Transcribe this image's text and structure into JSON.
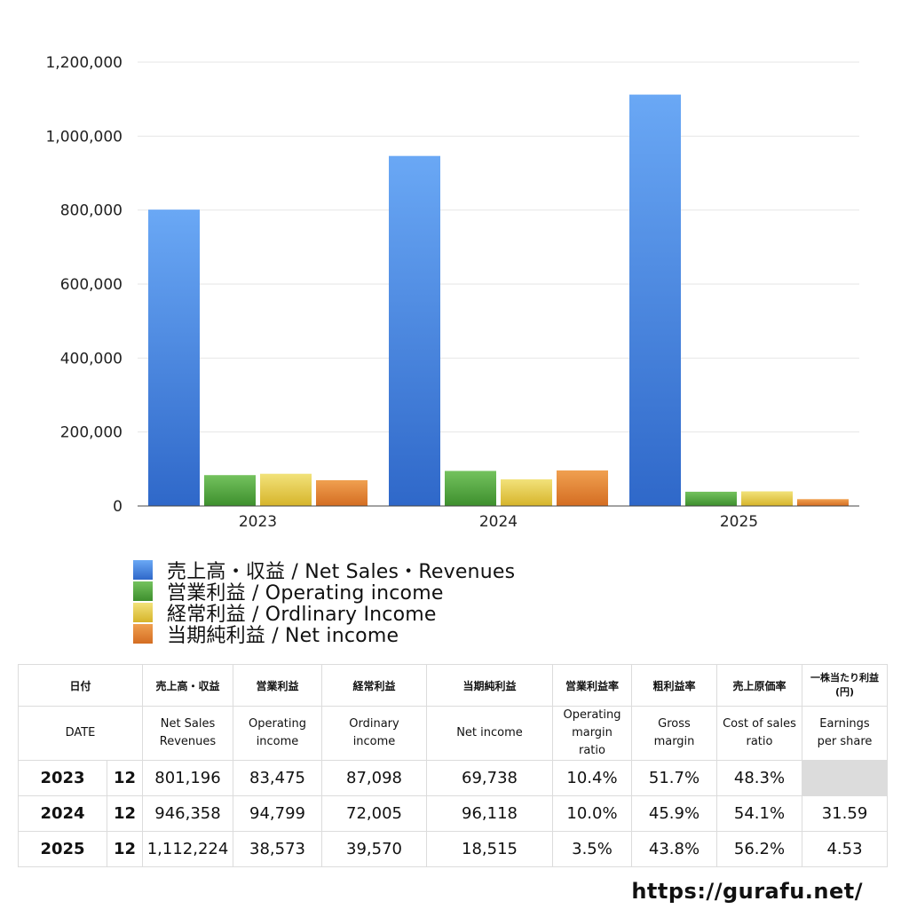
{
  "chart_data": {
    "type": "bar",
    "categories": [
      "2023",
      "2024",
      "2025"
    ],
    "series": [
      {
        "name": "売上高・収益 / Net Sales・Revenues",
        "values": [
          801196,
          946358,
          1112224
        ],
        "color_top": "#6aa8f5",
        "color_bottom": "#2f68c9"
      },
      {
        "name": "営業利益 / Operating income",
        "values": [
          83475,
          94799,
          38573
        ],
        "color_top": "#74c25e",
        "color_bottom": "#3d8f2d"
      },
      {
        "name": "経常利益 / Ordlinary Income",
        "values": [
          87098,
          72005,
          39570
        ],
        "color_top": "#f2e27a",
        "color_bottom": "#d6b42a"
      },
      {
        "name": "当期純利益 / Net income",
        "values": [
          69738,
          96118,
          18515
        ],
        "color_top": "#f0a050",
        "color_bottom": "#d46d22"
      }
    ],
    "ylim": [
      0,
      1200000
    ],
    "yticks": [
      "0",
      "200,000",
      "400,000",
      "600,000",
      "800,000",
      "1,000,000",
      "1,200,000"
    ],
    "grid": true,
    "legend_position": "bottom-left"
  },
  "table": {
    "header_jp": [
      "日付",
      "売上高・収益",
      "営業利益",
      "経常利益",
      "当期純利益",
      "営業利益率",
      "粗利益率",
      "売上原価率",
      "一株当たり利益 (円)"
    ],
    "header_en": [
      "DATE",
      "Net Sales Revenues",
      "Operating income",
      "Ordinary income",
      "Net income",
      "Operating margin ratio",
      "Gross margin",
      "Cost of sales ratio",
      "Earnings per share"
    ],
    "rows": [
      {
        "year": "2023",
        "month": "12",
        "sales": "801,196",
        "operating": "83,475",
        "ordinary": "87,098",
        "net": "69,738",
        "op_margin": "10.4%",
        "gross_margin": "51.7%",
        "cost_ratio": "48.3%",
        "eps": ""
      },
      {
        "year": "2024",
        "month": "12",
        "sales": "946,358",
        "operating": "94,799",
        "ordinary": "72,005",
        "net": "96,118",
        "op_margin": "10.0%",
        "gross_margin": "45.9%",
        "cost_ratio": "54.1%",
        "eps": "31.59"
      },
      {
        "year": "2025",
        "month": "12",
        "sales": "1,112,224",
        "operating": "38,573",
        "ordinary": "39,570",
        "net": "18,515",
        "op_margin": "3.5%",
        "gross_margin": "43.8%",
        "cost_ratio": "56.2%",
        "eps": "4.53"
      }
    ]
  },
  "footer": {
    "url": "https://gurafu.net/"
  }
}
